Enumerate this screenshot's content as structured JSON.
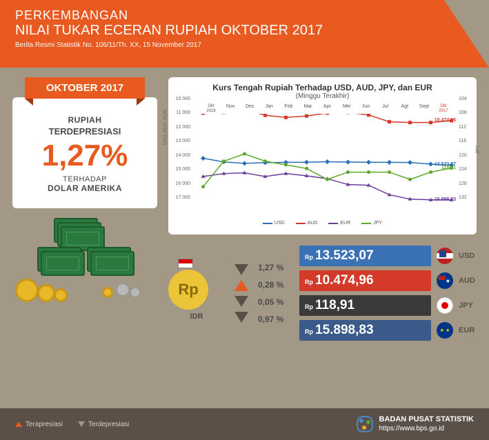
{
  "header": {
    "line1": "PERKEMBANGAN",
    "line2": "NILAI TUKAR ECERAN RUPIAH OKTOBER 2017",
    "sub": "Berita Resmi Statistik No. 106/11/Th. XX, 15 November 2017"
  },
  "badge": "OKTOBER 2017",
  "panel": {
    "l1": "RUPIAH",
    "l2": "TERDEPRESIASI",
    "pct": "1,27%",
    "l3": "TERHADAP",
    "l4": "DOLAR AMERIKA"
  },
  "chart": {
    "title": "Kurs Tengah Rupiah Terhadap USD, AUD, JPY, dan EUR",
    "sub": "(Minggu Terakhir)",
    "x": [
      "Okt\n2016",
      "Nov",
      "Des",
      "Jan",
      "Feb",
      "Mar",
      "Apr",
      "Mei",
      "Jun",
      "Jul",
      "Agt",
      "Sept",
      "Okt\n2017"
    ],
    "yl": [
      10000,
      11000,
      12000,
      13000,
      14000,
      15000,
      16000,
      17000
    ],
    "yr": [
      104,
      108,
      112,
      116,
      120,
      124,
      128,
      132
    ],
    "ylabel_l": "USD, AUD, EUR",
    "ylabel_r": "JPY",
    "series": {
      "usd": {
        "color": "#2a6fb5",
        "name": "USD",
        "marker": "diamond",
        "end": "13.523,07",
        "v": [
          13050,
          13300,
          13400,
          13350,
          13330,
          13320,
          13290,
          13310,
          13320,
          13330,
          13340,
          13450,
          13523
        ]
      },
      "aud": {
        "color": "#d33a2a",
        "name": "AUD",
        "marker": "square",
        "end": "10.474,96",
        "v": [
          9950,
          9900,
          9700,
          10100,
          10250,
          10150,
          9950,
          9900,
          10080,
          10550,
          10600,
          10600,
          10475
        ]
      },
      "eur": {
        "color": "#6a3a9a",
        "name": "EUR",
        "marker": "triangle",
        "end": "15.898,83",
        "v": [
          14300,
          14100,
          14050,
          14300,
          14100,
          14250,
          14450,
          14850,
          14900,
          15550,
          15850,
          15900,
          15899
        ]
      },
      "jpy": {
        "color": "#5aa82a",
        "name": "JPY",
        "marker": "circle",
        "end": "118,91",
        "v": [
          124,
          117,
          115,
          117,
          118,
          119,
          122,
          120,
          120,
          120,
          122,
          120,
          118.9
        ]
      }
    },
    "legend": [
      "USD",
      "AUD",
      "EUR",
      "JPY"
    ]
  },
  "idr": {
    "code": "Rp",
    "label": "IDR"
  },
  "rates": [
    {
      "dir": "d",
      "pct": "1,27 %",
      "val": "13.523,07",
      "bg": "#3a72b5",
      "cur": "USD",
      "flag": "us"
    },
    {
      "dir": "u",
      "pct": "0,28 %",
      "val": "10.474,96",
      "bg": "#d33a2a",
      "cur": "AUD",
      "flag": "au"
    },
    {
      "dir": "d",
      "pct": "0,05 %",
      "val": "118,91",
      "bg": "#3a3a3a",
      "cur": "JPY",
      "flag": "jp"
    },
    {
      "dir": "d",
      "pct": "0,97 %",
      "val": "15.898,83",
      "bg": "#3a5a8a",
      "cur": "EUR",
      "flag": "eu"
    }
  ],
  "footer": {
    "ap": "Terapresiasi",
    "dp": "Terdepresiasi",
    "org": "BADAN PUSAT STATISTIK",
    "url": "https://www.bps.go.id"
  },
  "colors": {
    "accent": "#e85a1f",
    "bg": "#a39885",
    "dark": "#5a5048"
  }
}
